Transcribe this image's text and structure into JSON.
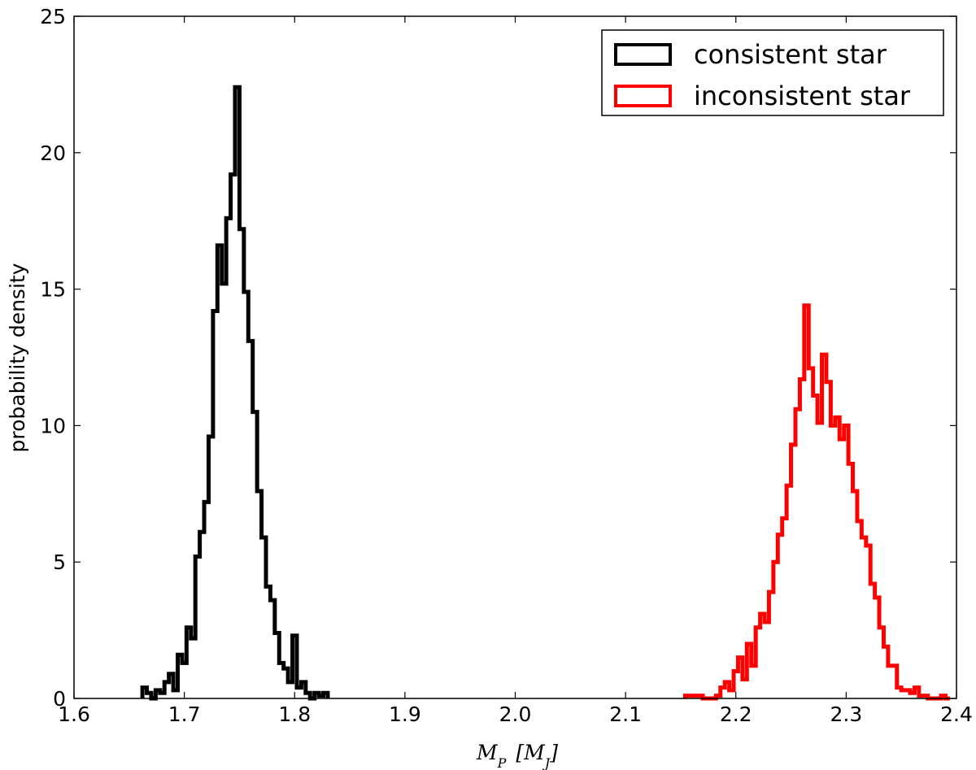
{
  "chart_data": {
    "type": "histogram-step",
    "xlabel": "M_P [M_J]",
    "ylabel": "probability density",
    "xlim": [
      1.6,
      2.4
    ],
    "ylim": [
      0,
      25
    ],
    "x_ticks": [
      "1.6",
      "1.7",
      "1.8",
      "1.9",
      "2.0",
      "2.1",
      "2.2",
      "2.3",
      "2.4"
    ],
    "y_ticks": [
      "0",
      "5",
      "10",
      "15",
      "20",
      "25"
    ],
    "legend_position": "top-right",
    "grid": false,
    "series": [
      {
        "name": "consistent star",
        "color": "#000000",
        "x": [
          1.664,
          1.668,
          1.672,
          1.676,
          1.68,
          1.684,
          1.688,
          1.692,
          1.696,
          1.7,
          1.704,
          1.708,
          1.712,
          1.716,
          1.72,
          1.724,
          1.728,
          1.732,
          1.736,
          1.74,
          1.744,
          1.748,
          1.752,
          1.756,
          1.76,
          1.764,
          1.768,
          1.772,
          1.776,
          1.78,
          1.784,
          1.788,
          1.792,
          1.796,
          1.8,
          1.804,
          1.808,
          1.812,
          1.816,
          1.82,
          1.824,
          1.828
        ],
        "values": [
          0.4,
          0.2,
          0.0,
          0.3,
          0.2,
          0.6,
          0.9,
          0.3,
          1.6,
          1.3,
          2.6,
          2.2,
          5.2,
          6.1,
          7.2,
          9.6,
          14.2,
          16.6,
          15.2,
          17.6,
          19.2,
          22.4,
          17.2,
          14.9,
          13.1,
          10.5,
          7.6,
          5.9,
          4.1,
          3.6,
          2.4,
          1.3,
          1.1,
          0.6,
          2.3,
          0.4,
          0.6,
          0.2,
          0.0,
          0.2,
          0.1,
          0.2
        ]
      },
      {
        "name": "inconsistent star",
        "color": "#ff0000",
        "x": [
          2.156,
          2.16,
          2.164,
          2.168,
          2.172,
          2.176,
          2.18,
          2.184,
          2.188,
          2.192,
          2.196,
          2.2,
          2.204,
          2.208,
          2.212,
          2.216,
          2.22,
          2.224,
          2.228,
          2.232,
          2.236,
          2.24,
          2.244,
          2.248,
          2.252,
          2.256,
          2.26,
          2.264,
          2.268,
          2.272,
          2.276,
          2.28,
          2.284,
          2.288,
          2.292,
          2.296,
          2.3,
          2.304,
          2.308,
          2.312,
          2.316,
          2.32,
          2.324,
          2.328,
          2.332,
          2.336,
          2.34,
          2.344,
          2.348,
          2.352,
          2.356,
          2.36,
          2.364,
          2.368,
          2.372,
          2.376,
          2.38,
          2.384,
          2.388,
          2.392
        ],
        "values": [
          0.1,
          0.1,
          0.1,
          0.1,
          0.0,
          0.0,
          0.0,
          0.1,
          0.4,
          0.6,
          0.3,
          1.0,
          1.5,
          0.7,
          2.0,
          1.2,
          2.6,
          3.1,
          2.8,
          3.9,
          5.0,
          6.0,
          6.6,
          7.8,
          9.3,
          10.6,
          11.7,
          14.4,
          12.1,
          11.1,
          10.1,
          12.6,
          11.6,
          10.0,
          10.3,
          9.5,
          10.0,
          8.6,
          7.6,
          6.5,
          5.9,
          5.6,
          4.2,
          3.7,
          2.6,
          1.9,
          1.2,
          1.2,
          0.4,
          0.3,
          0.3,
          0.2,
          0.4,
          0.1,
          0.1,
          0.0,
          0.0,
          0.0,
          0.1,
          0.0
        ]
      }
    ]
  }
}
